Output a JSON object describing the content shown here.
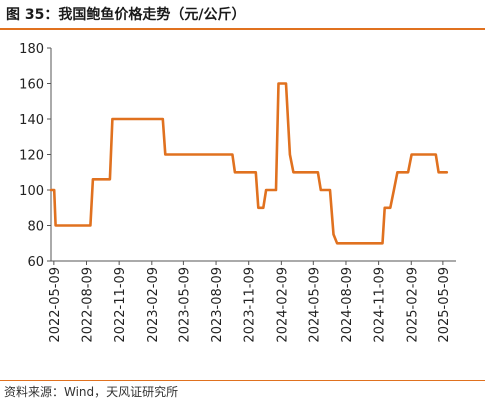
{
  "title": "图 35：我国鲍鱼价格走势（元/公斤）",
  "source": "资料来源：Wind，天风证研究所",
  "chart_data": {
    "type": "line",
    "title": "图 35：我国鲍鱼价格走势（元/公斤）",
    "xlabel": "",
    "ylabel": "",
    "ylim": [
      60,
      180
    ],
    "yticks": [
      60,
      80,
      100,
      120,
      140,
      160,
      180
    ],
    "xlim": [
      "2022-05-01",
      "2025-06-15"
    ],
    "xticks": [
      "2022-05-09",
      "2022-08-09",
      "2022-11-09",
      "2023-02-09",
      "2023-05-09",
      "2023-08-09",
      "2023-11-09",
      "2024-02-09",
      "2024-05-09",
      "2024-08-09",
      "2024-11-09",
      "2025-02-09",
      "2025-05-09"
    ],
    "grid": false,
    "legend": "none",
    "line_color": "#e0711f",
    "series": [
      {
        "name": "",
        "points": [
          [
            "2022-05-01",
            100
          ],
          [
            "2022-05-10",
            100
          ],
          [
            "2022-05-14",
            80
          ],
          [
            "2022-08-20",
            80
          ],
          [
            "2022-08-27",
            106
          ],
          [
            "2022-10-14",
            106
          ],
          [
            "2022-10-21",
            140
          ],
          [
            "2023-03-12",
            140
          ],
          [
            "2023-03-19",
            120
          ],
          [
            "2023-09-24",
            120
          ],
          [
            "2023-10-01",
            110
          ],
          [
            "2023-11-29",
            110
          ],
          [
            "2023-12-06",
            90
          ],
          [
            "2023-12-20",
            90
          ],
          [
            "2023-12-28",
            100
          ],
          [
            "2024-01-25",
            100
          ],
          [
            "2024-02-01",
            160
          ],
          [
            "2024-02-22",
            160
          ],
          [
            "2024-03-04",
            120
          ],
          [
            "2024-03-14",
            110
          ],
          [
            "2024-05-22",
            110
          ],
          [
            "2024-05-30",
            100
          ],
          [
            "2024-06-25",
            100
          ],
          [
            "2024-07-05",
            75
          ],
          [
            "2024-07-15",
            70
          ],
          [
            "2024-11-20",
            70
          ],
          [
            "2024-11-26",
            90
          ],
          [
            "2024-12-12",
            90
          ],
          [
            "2024-12-22",
            100
          ],
          [
            "2025-01-01",
            110
          ],
          [
            "2025-01-31",
            110
          ],
          [
            "2025-02-10",
            120
          ],
          [
            "2025-04-19",
            120
          ],
          [
            "2025-04-27",
            110
          ],
          [
            "2025-05-20",
            110
          ]
        ]
      }
    ]
  }
}
